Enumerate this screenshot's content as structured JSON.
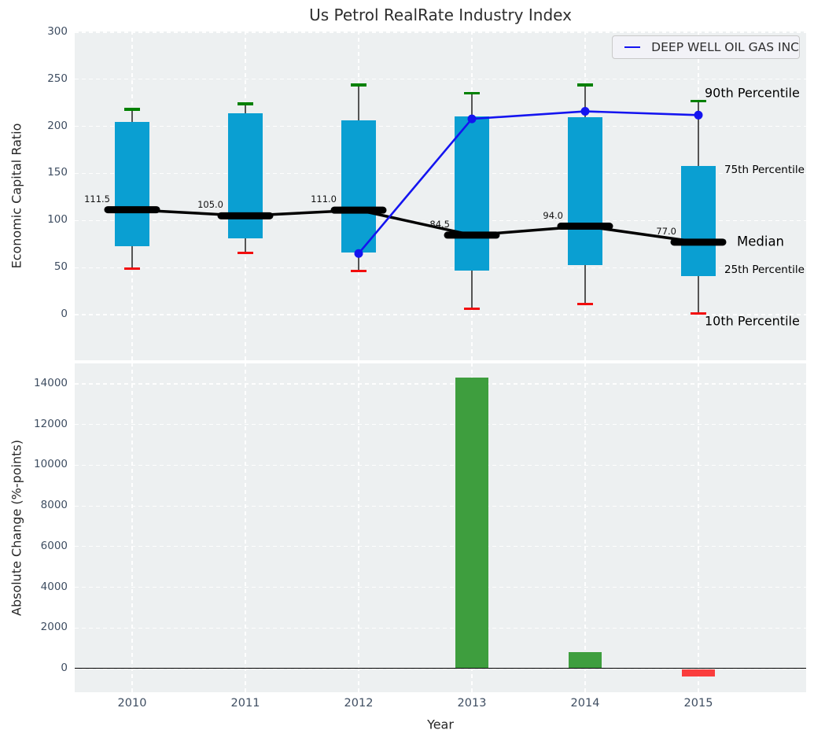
{
  "title": "Us Petrol RealRate Industry Index",
  "legend": {
    "label": "DEEP WELL OIL GAS INC"
  },
  "annotations": {
    "p90": "90th Percentile",
    "p75": "75th Percentile",
    "median": "Median",
    "p25": "25th Percentile",
    "p10": "10th Percentile"
  },
  "colors": {
    "panel_bg": "#edf0f1",
    "grid": "#ffffff",
    "box_fill": "#0a9fd2",
    "whisker": "#555555",
    "cap_top": "#008000",
    "cap_bottom": "#f20d0d",
    "median_line": "#000000",
    "company_line": "#1414f0",
    "bar_positive": "#3e9e3e",
    "bar_negative": "#fa3d3d",
    "tick_label": "#3e4d61",
    "annotation_dark": "#1a1a1a",
    "annotation_cyan": "#18a0d8"
  },
  "chart_data": [
    {
      "type": "boxplot+line",
      "title": "Us Petrol RealRate Industry Index",
      "ylabel": "Economic Capital Ratio",
      "ylim": [
        -52,
        300
      ],
      "yticks": [
        0,
        50,
        100,
        150,
        200,
        250,
        300
      ],
      "grid": true,
      "legend_position": "upper right",
      "categories": [
        2010,
        2011,
        2012,
        2013,
        2014,
        2015
      ],
      "series": [
        {
          "name": "90th Percentile",
          "values": [
            218,
            224,
            244,
            235,
            244,
            227
          ]
        },
        {
          "name": "75th Percentile",
          "values": [
            205,
            214,
            206,
            211,
            210,
            158
          ]
        },
        {
          "name": "Median",
          "values": [
            111.5,
            105.0,
            111.0,
            84.5,
            94.0,
            77.0
          ]
        },
        {
          "name": "25th Percentile",
          "values": [
            73,
            81,
            66,
            47,
            53,
            41
          ]
        },
        {
          "name": "10th Percentile",
          "values": [
            49,
            66,
            46,
            6,
            11,
            1
          ]
        },
        {
          "name": "DEEP WELL OIL GAS INC",
          "values": [
            null,
            null,
            65,
            208,
            216,
            212
          ]
        }
      ],
      "median_labels": [
        "111.5",
        "105.0",
        "111.0",
        "84.5",
        "94.0",
        "77.0"
      ]
    },
    {
      "type": "bar",
      "ylabel": "Absolute Change (%-points)",
      "xlabel": "Year",
      "ylim": [
        -1160,
        15000
      ],
      "yticks": [
        0,
        2000,
        4000,
        6000,
        8000,
        10000,
        12000,
        14000
      ],
      "grid": true,
      "categories": [
        2010,
        2011,
        2012,
        2013,
        2014,
        2015
      ],
      "values": [
        0,
        0,
        0,
        14300,
        800,
        -350
      ]
    }
  ]
}
